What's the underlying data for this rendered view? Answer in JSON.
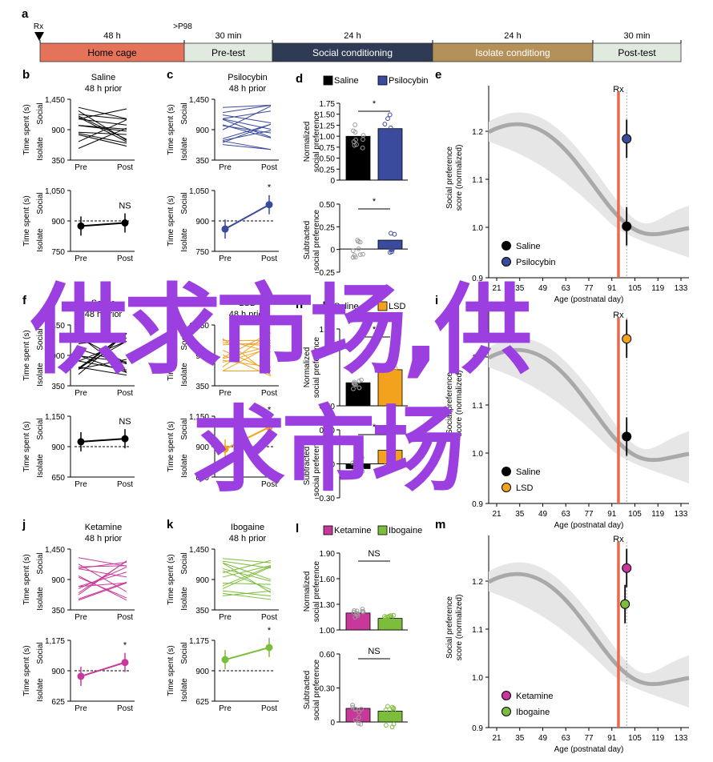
{
  "colors": {
    "saline": "#000000",
    "psilocybin": "#3a4a9c",
    "lsd": "#f3a21d",
    "ketamine": "#c8389a",
    "ibogaine": "#7cbd3b",
    "rx_line": "#ea6a50",
    "home_cage": "#e4735a",
    "pre_test": "#e0eadf",
    "social_cond": "#2f3a55",
    "isolate_cond": "#b5915a",
    "post_test": "#e0eadf",
    "watermark": "#9b3fe0"
  },
  "timeline": {
    "panel_letter": "a",
    "rx": "Rx",
    "p98": ">P98",
    "durations": [
      "48 h",
      "30 min",
      "24 h",
      "24 h",
      "30 min"
    ],
    "stages": [
      "Home cage",
      "Pre-test",
      "Social conditioning",
      "Isolate conditiong",
      "Post-test"
    ]
  },
  "common": {
    "ytitle_a": "Time spent (s)",
    "social": "Social",
    "isolate": "Isolate",
    "pre": "Pre",
    "post": "Post",
    "prior": "48 h prior",
    "norm_label": [
      "Normalized",
      "social preference"
    ],
    "sub_label": [
      "Subtracted",
      "social preference"
    ],
    "e_ylabel": [
      "Social preference",
      "score (normalized)"
    ],
    "e_xlabel": "Age (postnatal day)",
    "rx": "Rx"
  },
  "rows": [
    {
      "letters": {
        "pair": "b",
        "pair2": "c",
        "bar": "d",
        "curve": "e"
      },
      "drugs": [
        "Saline",
        "Psilocybin"
      ],
      "top_ticks": [
        "1,450",
        "900",
        "350"
      ],
      "bottom_ticks_ctrl": [
        "1,050",
        "900",
        "750"
      ],
      "bottom_ticks_drug": [
        "1,050",
        "900",
        "750"
      ],
      "sig_ctrl": "NS",
      "sig_drug": "*",
      "norm_ticks": [
        "1.75",
        "1.50",
        "1.25",
        "1.00",
        "0.75",
        "0.50",
        "0.25",
        "0"
      ],
      "sub_ticks": [
        "0.50",
        "0.25",
        "0",
        "−0.25"
      ],
      "sig_norm": "*",
      "sig_sub": "*"
    },
    {
      "letters": {
        "pair": "f",
        "pair2": "g",
        "bar": "h",
        "curve": "i"
      },
      "drugs": [
        "Saline",
        "LSD"
      ],
      "top_ticks": [
        "1,450",
        "900",
        "350"
      ],
      "bottom_ticks_ctrl": [
        "1,150",
        "900",
        "650"
      ],
      "bottom_ticks_drug": [
        "1,150",
        "900",
        "650"
      ],
      "sig_ctrl": "NS",
      "sig_drug": "*",
      "norm_ticks": [
        "1.00",
        "0.50"
      ],
      "sub_ticks": [
        "0.30",
        "0",
        "−0.30"
      ],
      "sig_norm": "*",
      "sig_sub": "*"
    },
    {
      "letters": {
        "pair": "j",
        "pair2": "k",
        "bar": "l",
        "curve": "m"
      },
      "drugs": [
        "Ketamine",
        "Ibogaine"
      ],
      "top_ticks": [
        "1,450",
        "900",
        "350"
      ],
      "bottom_ticks_ctrl": [
        "1,175",
        "900",
        "625"
      ],
      "bottom_ticks_drug": [
        "1,175",
        "900",
        "625"
      ],
      "sig_ctrl": "*",
      "sig_drug": "*",
      "norm_ticks": [
        "1.90",
        "1.60",
        "1.30",
        "1.00"
      ],
      "sub_ticks": [
        "0.60",
        "0.30",
        "0"
      ],
      "sig_norm": "NS",
      "sig_sub": "NS"
    }
  ],
  "chart_data": [
    {
      "panel": "b",
      "type": "line",
      "title": "Saline",
      "subtitle": "48 h prior",
      "ylabel": "Time spent (s)",
      "x": [
        "Pre",
        "Post"
      ],
      "ylim": [
        350,
        1450
      ],
      "note": "individual animals, pre vs post"
    },
    {
      "panel": "b-mean",
      "type": "line",
      "x": [
        "Pre",
        "Post"
      ],
      "series": [
        {
          "name": "Saline",
          "values": [
            875,
            890
          ]
        }
      ],
      "ylim": [
        750,
        1050
      ],
      "annotation": "NS"
    },
    {
      "panel": "c",
      "type": "line",
      "title": "Psilocybin",
      "subtitle": "48 h prior",
      "x": [
        "Pre",
        "Post"
      ],
      "ylim": [
        350,
        1450
      ]
    },
    {
      "panel": "c-mean",
      "type": "line",
      "x": [
        "Pre",
        "Post"
      ],
      "series": [
        {
          "name": "Psilocybin",
          "values": [
            860,
            980
          ]
        }
      ],
      "ylim": [
        750,
        1050
      ],
      "annotation": "*"
    },
    {
      "panel": "d-top",
      "type": "bar",
      "categories": [
        "Saline",
        "Psilocybin"
      ],
      "values": [
        1.0,
        1.18
      ],
      "ylim": [
        0,
        1.75
      ],
      "annotation": "*"
    },
    {
      "panel": "d-bottom",
      "type": "bar",
      "categories": [
        "Saline",
        "Psilocybin"
      ],
      "values": [
        0.0,
        0.13
      ],
      "ylim": [
        -0.25,
        0.5
      ],
      "annotation": "*"
    },
    {
      "panel": "e",
      "type": "scatter",
      "xlabel": "Age (postnatal day)",
      "xticks": [
        21,
        35,
        49,
        63,
        77,
        91,
        105,
        119,
        133
      ],
      "ylim": [
        0.9,
        1.25
      ],
      "yticks": [
        0.9,
        1.0,
        1.1,
        1.2
      ],
      "series": [
        {
          "name": "Saline",
          "x": [
            100
          ],
          "y": [
            1.0
          ]
        },
        {
          "name": "Psilocybin",
          "x": [
            100
          ],
          "y": [
            1.17
          ]
        }
      ],
      "rx_day": 95
    },
    {
      "panel": "f-mean",
      "type": "line",
      "x": [
        "Pre",
        "Post"
      ],
      "series": [
        {
          "name": "Saline",
          "values": [
            940,
            965
          ]
        }
      ],
      "ylim": [
        650,
        1150
      ],
      "annotation": "NS"
    },
    {
      "panel": "g-mean",
      "type": "line",
      "x": [
        "Pre",
        "Post"
      ],
      "series": [
        {
          "name": "LSD",
          "values": [
            880,
            1060
          ]
        }
      ],
      "ylim": [
        650,
        1150
      ],
      "annotation": "*"
    },
    {
      "panel": "h-top",
      "type": "bar",
      "categories": [
        "Saline",
        "LSD"
      ],
      "values": [
        1.04,
        1.22
      ],
      "annotation": "*"
    },
    {
      "panel": "h-bottom",
      "type": "bar",
      "categories": [
        "Saline",
        "LSD"
      ],
      "values": [
        -0.06,
        0.17
      ],
      "annotation": "*"
    },
    {
      "panel": "i",
      "type": "scatter",
      "xticks": [
        21,
        35,
        49,
        63,
        77,
        91,
        105,
        119,
        133
      ],
      "ylim": [
        0.9,
        1.25
      ],
      "yticks": [
        0.9,
        1.0,
        1.1,
        1.2
      ],
      "series": [
        {
          "name": "Saline",
          "x": [
            100
          ],
          "y": [
            1.03
          ]
        },
        {
          "name": "LSD",
          "x": [
            100
          ],
          "y": [
            1.22
          ]
        }
      ],
      "rx_day": 95
    },
    {
      "panel": "j-mean",
      "type": "line",
      "x": [
        "Pre",
        "Post"
      ],
      "series": [
        {
          "name": "Ketamine",
          "values": [
            850,
            975
          ]
        }
      ],
      "ylim": [
        625,
        1175
      ],
      "annotation": "*"
    },
    {
      "panel": "k-mean",
      "type": "line",
      "x": [
        "Pre",
        "Post"
      ],
      "series": [
        {
          "name": "Ibogaine",
          "values": [
            1000,
            1110
          ]
        }
      ],
      "ylim": [
        625,
        1175
      ],
      "annotation": "*"
    },
    {
      "panel": "l-top",
      "type": "bar",
      "categories": [
        "Ketamine",
        "Ibogaine"
      ],
      "values": [
        1.2,
        1.13
      ],
      "ylim": [
        1.0,
        1.9
      ],
      "annotation": "NS"
    },
    {
      "panel": "l-bottom",
      "type": "bar",
      "categories": [
        "Ketamine",
        "Ibogaine"
      ],
      "values": [
        0.14,
        0.12
      ],
      "ylim": [
        0,
        0.6
      ],
      "annotation": "NS"
    },
    {
      "panel": "m",
      "type": "scatter",
      "xticks": [
        21,
        35,
        49,
        63,
        77,
        91,
        105,
        119,
        133
      ],
      "ylim": [
        0.9,
        1.27
      ],
      "yticks": [
        0.9,
        1.0,
        1.1,
        1.2
      ],
      "series": [
        {
          "name": "Ketamine",
          "x": [
            100
          ],
          "y": [
            1.21
          ]
        },
        {
          "name": "Ibogaine",
          "x": [
            99
          ],
          "y": [
            1.14
          ]
        }
      ],
      "rx_day": 95
    }
  ],
  "watermark": {
    "line1": "供求市场,供",
    "line2": "求市场"
  }
}
